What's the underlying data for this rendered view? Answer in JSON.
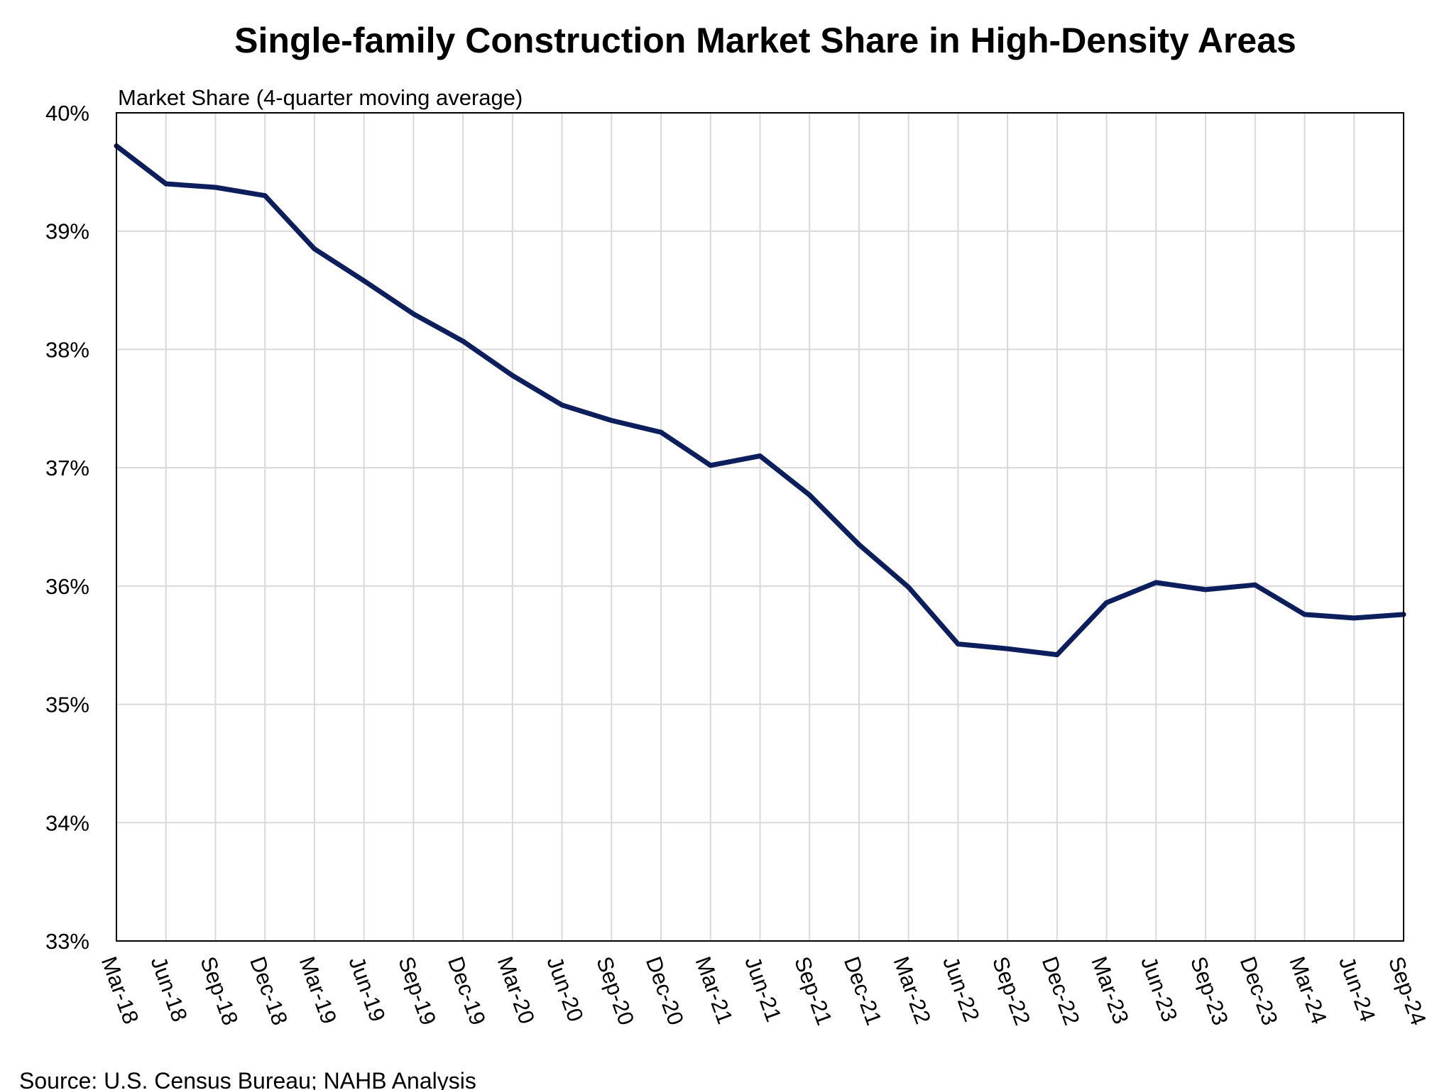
{
  "chart_data": {
    "type": "line",
    "title": "Single-family Construction Market Share in High-Density Areas",
    "ylabel": "Market Share (4-quarter moving average)",
    "xlabel": "",
    "source": "Source: U.S. Census Bureau; NAHB Analysis",
    "ylim": [
      0.33,
      0.4
    ],
    "y_ticks": [
      "33%",
      "34%",
      "35%",
      "36%",
      "37%",
      "38%",
      "39%",
      "40%"
    ],
    "categories": [
      "Mar-18",
      "Jun-18",
      "Sep-18",
      "Dec-18",
      "Mar-19",
      "Jun-19",
      "Sep-19",
      "Dec-19",
      "Mar-20",
      "Jun-20",
      "Sep-20",
      "Dec-20",
      "Mar-21",
      "Jun-21",
      "Sep-21",
      "Dec-21",
      "Mar-22",
      "Jun-22",
      "Sep-22",
      "Dec-22",
      "Mar-23",
      "Jun-23",
      "Sep-23",
      "Dec-23",
      "Mar-24",
      "Jun-24",
      "Sep-24"
    ],
    "series": [
      {
        "color": "#0c1f5c",
        "values": [
          0.3972,
          0.394,
          0.3937,
          0.393,
          0.3885,
          0.3858,
          0.383,
          0.3807,
          0.3778,
          0.3753,
          0.374,
          0.373,
          0.3702,
          0.371,
          0.3677,
          0.3635,
          0.3599,
          0.3551,
          0.3547,
          0.3542,
          0.3586,
          0.3603,
          0.3597,
          0.3601,
          0.3576,
          0.3573,
          0.3576
        ]
      }
    ],
    "grid": {
      "vertical": true,
      "horizontal": true
    },
    "legend": "none"
  }
}
